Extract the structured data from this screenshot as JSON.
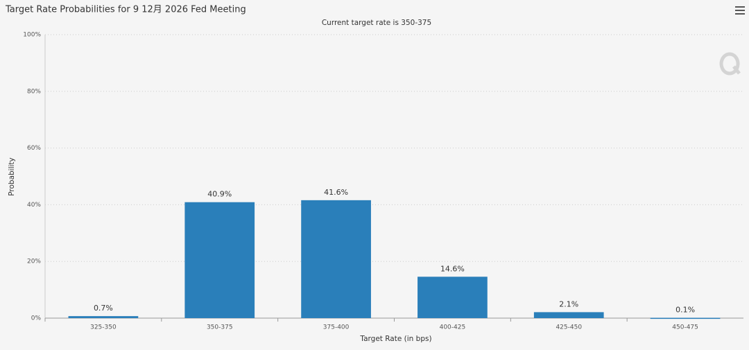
{
  "chart_data": {
    "type": "bar",
    "title": "Target Rate Probabilities for 9 12月 2026 Fed Meeting",
    "subtitle": "Current target rate is 350-375",
    "x_label": "Target Rate (in bps)",
    "y_label": "Probability",
    "categories": [
      "325-350",
      "350-375",
      "375-400",
      "400-425",
      "425-450",
      "450-475"
    ],
    "values": [
      0.7,
      40.9,
      41.6,
      14.6,
      2.1,
      0.1
    ],
    "value_labels": [
      "0.7%",
      "40.9%",
      "41.6%",
      "14.6%",
      "2.1%",
      "0.1%"
    ],
    "color": "#2a7fba",
    "ylim": [
      0,
      100
    ],
    "yticks": [
      {
        "value": 0,
        "label": "0%"
      },
      {
        "value": 20,
        "label": "20%"
      },
      {
        "value": 40,
        "label": "40%"
      },
      {
        "value": 60,
        "label": "60%"
      },
      {
        "value": 80,
        "label": "80%"
      },
      {
        "value": 100,
        "label": "100%"
      }
    ],
    "grid": true
  }
}
